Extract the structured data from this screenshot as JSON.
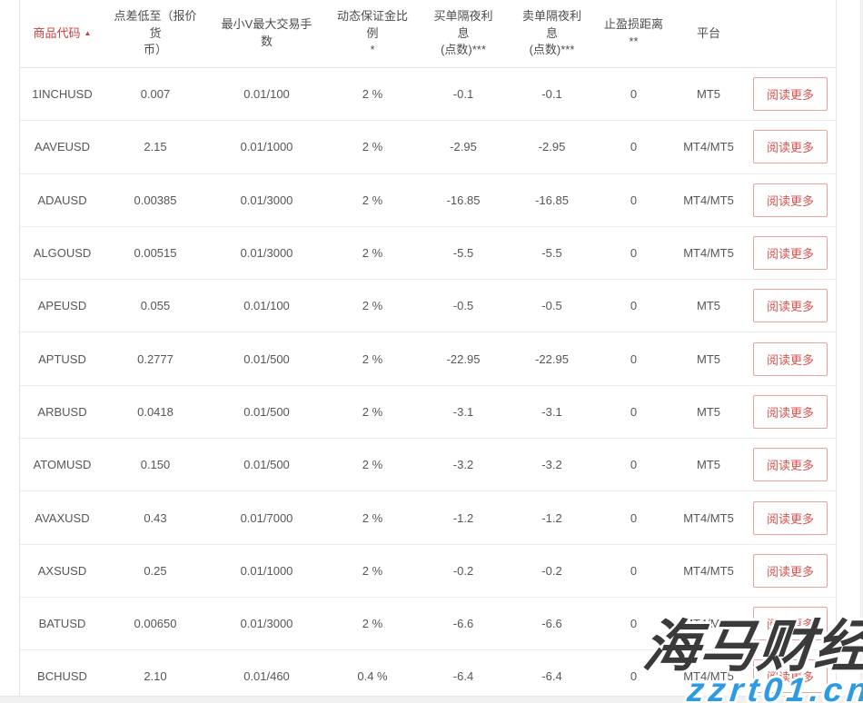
{
  "table": {
    "header": {
      "code": "商品代码",
      "sort_icon": "▲",
      "spread": "点差低至（报价货\n币）",
      "lots": "最小V最大交易手\n数",
      "margin": "动态保证金比例\n*",
      "buy_swap": "买单隔夜利\n息\n(点数)***",
      "sell_swap": "卖单隔夜利\n息\n(点数)***",
      "sl_distance": "止盈损距离\n**",
      "platform": "平台"
    },
    "read_more_label": "阅读更多",
    "rows": [
      {
        "code": "1INCHUSD",
        "spread": "0.007",
        "lots": "0.01/100",
        "margin": "2 %",
        "buy_swap": "-0.1",
        "sell_swap": "-0.1",
        "sl_distance": "0",
        "platform": "MT5"
      },
      {
        "code": "AAVEUSD",
        "spread": "2.15",
        "lots": "0.01/1000",
        "margin": "2 %",
        "buy_swap": "-2.95",
        "sell_swap": "-2.95",
        "sl_distance": "0",
        "platform": "MT4/MT5"
      },
      {
        "code": "ADAUSD",
        "spread": "0.00385",
        "lots": "0.01/3000",
        "margin": "2 %",
        "buy_swap": "-16.85",
        "sell_swap": "-16.85",
        "sl_distance": "0",
        "platform": "MT4/MT5"
      },
      {
        "code": "ALGOUSD",
        "spread": "0.00515",
        "lots": "0.01/3000",
        "margin": "2 %",
        "buy_swap": "-5.5",
        "sell_swap": "-5.5",
        "sl_distance": "0",
        "platform": "MT4/MT5"
      },
      {
        "code": "APEUSD",
        "spread": "0.055",
        "lots": "0.01/100",
        "margin": "2 %",
        "buy_swap": "-0.5",
        "sell_swap": "-0.5",
        "sl_distance": "0",
        "platform": "MT5"
      },
      {
        "code": "APTUSD",
        "spread": "0.2777",
        "lots": "0.01/500",
        "margin": "2 %",
        "buy_swap": "-22.95",
        "sell_swap": "-22.95",
        "sl_distance": "0",
        "platform": "MT5"
      },
      {
        "code": "ARBUSD",
        "spread": "0.0418",
        "lots": "0.01/500",
        "margin": "2 %",
        "buy_swap": "-3.1",
        "sell_swap": "-3.1",
        "sl_distance": "0",
        "platform": "MT5"
      },
      {
        "code": "ATOMUSD",
        "spread": "0.150",
        "lots": "0.01/500",
        "margin": "2 %",
        "buy_swap": "-3.2",
        "sell_swap": "-3.2",
        "sl_distance": "0",
        "platform": "MT5"
      },
      {
        "code": "AVAXUSD",
        "spread": "0.43",
        "lots": "0.01/7000",
        "margin": "2 %",
        "buy_swap": "-1.2",
        "sell_swap": "-1.2",
        "sl_distance": "0",
        "platform": "MT4/MT5"
      },
      {
        "code": "AXSUSD",
        "spread": "0.25",
        "lots": "0.01/1000",
        "margin": "2 %",
        "buy_swap": "-0.2",
        "sell_swap": "-0.2",
        "sl_distance": "0",
        "platform": "MT4/MT5"
      },
      {
        "code": "BATUSD",
        "spread": "0.00650",
        "lots": "0.01/3000",
        "margin": "2 %",
        "buy_swap": "-6.6",
        "sell_swap": "-6.6",
        "sl_distance": "0",
        "platform": "MT4/MT5"
      },
      {
        "code": "BCHUSD",
        "spread": "2.10",
        "lots": "0.01/460",
        "margin": "0.4 %",
        "buy_swap": "-6.4",
        "sell_swap": "-6.4",
        "sl_distance": "0",
        "platform": "MT4/MT5"
      }
    ]
  },
  "watermark": {
    "brand": "海马财经",
    "site": "zzrt01.cn"
  },
  "colors": {
    "header_accent": "#c5403e",
    "button_text": "#d9534f",
    "button_border": "#e5a3a1",
    "watermark_brand": "#3a3a3a",
    "watermark_site": "#2d9ae3"
  }
}
